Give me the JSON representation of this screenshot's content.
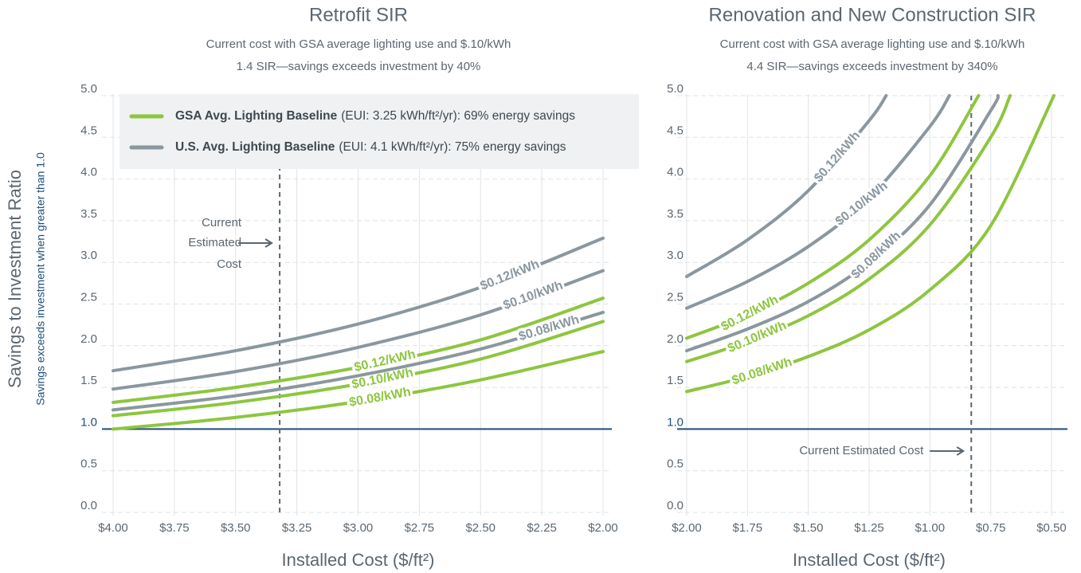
{
  "chart_data": [
    {
      "type": "line",
      "title": "Retrofit SIR",
      "subtitle": [
        "Current cost with GSA average lighting use and $.10/kWh",
        "1.4 SIR—savings exceeds investment by 40%"
      ],
      "xlabel": "Installed Cost ($/ft²)",
      "ylabel": "Savings to Investment Ratio",
      "ylabel_note": "Savings exceeds investment when greater than 1.0",
      "xlim": [
        4.0,
        2.0
      ],
      "xticks": [
        {
          "value": 4.0,
          "label": "$4.00"
        },
        {
          "value": 3.75,
          "label": "$3.75"
        },
        {
          "value": 3.5,
          "label": "$3.50"
        },
        {
          "value": 3.25,
          "label": "$3.25"
        },
        {
          "value": 3.0,
          "label": "$3.00"
        },
        {
          "value": 2.75,
          "label": "$2.75"
        },
        {
          "value": 2.5,
          "label": "$2.50"
        },
        {
          "value": 2.25,
          "label": "$2.25"
        },
        {
          "value": 2.0,
          "label": "$2.00"
        }
      ],
      "ylim": [
        0,
        5
      ],
      "yticks": [
        {
          "value": 0,
          "label": "0.0"
        },
        0.5,
        {
          "value": 1,
          "label": "1.0"
        },
        1.5,
        {
          "value": 2,
          "label": "2.0"
        },
        2.5,
        {
          "value": 3,
          "label": "3.0"
        },
        3.5,
        {
          "value": 4,
          "label": "4.0"
        },
        4.5,
        {
          "value": 5,
          "label": "5.0"
        }
      ],
      "grid": true,
      "reference_line": 1.0,
      "legend": [
        {
          "label": "GSA Avg. Lighting Baseline",
          "detail": "(EUI: 3.25 kWh/ft²/yr): 69% energy savings",
          "color": "#8dc63f"
        },
        {
          "label": "U.S. Avg. Lighting Baseline",
          "detail": "(EUI: 4.1 kWh/ft²/yr): 75% energy savings",
          "color": "#8a979f"
        }
      ],
      "annotation": {
        "x": 3.32,
        "text": [
          "Current",
          "Estimated",
          "Cost"
        ]
      },
      "series": [
        {
          "name": "$0.12/kWh",
          "color": "#8dc63f",
          "x": [
            4.0,
            3.5,
            3.0,
            2.5,
            2.0
          ],
          "values": [
            1.32,
            1.5,
            1.74,
            2.07,
            2.57
          ]
        },
        {
          "name": "$0.10/kWh",
          "color": "#8dc63f",
          "x": [
            4.0,
            3.5,
            3.0,
            2.5,
            2.0
          ],
          "values": [
            1.16,
            1.32,
            1.54,
            1.84,
            2.29
          ]
        },
        {
          "name": "$0.08/kWh",
          "color": "#8dc63f",
          "x": [
            4.0,
            3.5,
            3.0,
            2.5,
            2.0
          ],
          "values": [
            1.0,
            1.14,
            1.33,
            1.59,
            1.93
          ]
        },
        {
          "name": "$0.12/kWh",
          "color": "#8a979f",
          "x": [
            4.0,
            3.5,
            3.0,
            2.5,
            2.0
          ],
          "values": [
            1.7,
            1.94,
            2.26,
            2.7,
            3.29
          ]
        },
        {
          "name": "$0.10/kWh",
          "color": "#8a979f",
          "x": [
            4.0,
            3.5,
            3.0,
            2.5,
            2.0
          ],
          "values": [
            1.48,
            1.69,
            1.98,
            2.37,
            2.9
          ]
        },
        {
          "name": "$0.08/kWh",
          "color": "#8a979f",
          "x": [
            4.0,
            3.5,
            3.0,
            2.5,
            2.0
          ],
          "values": [
            1.23,
            1.4,
            1.64,
            1.96,
            2.4
          ]
        }
      ]
    },
    {
      "type": "line",
      "title": "Renovation and New Construction SIR",
      "subtitle": [
        "Current cost with GSA average lighting use and $.10/kWh",
        "4.4 SIR—savings exceeds investment by 340%"
      ],
      "xlabel": "Installed Cost ($/ft²)",
      "xlim": [
        2.0,
        0.5
      ],
      "xticks": [
        {
          "value": 2.0,
          "label": "$2.00"
        },
        {
          "value": 1.75,
          "label": "$1.75"
        },
        {
          "value": 1.5,
          "label": "$1.50"
        },
        {
          "value": 1.25,
          "label": "$1.25"
        },
        {
          "value": 1.0,
          "label": "$1.00"
        },
        {
          "value": 0.75,
          "label": "$0.75"
        },
        {
          "value": 0.5,
          "label": "$0.50"
        }
      ],
      "ylim": [
        0,
        5
      ],
      "yticks": [
        {
          "value": 0,
          "label": "0.0"
        },
        0.5,
        {
          "value": 1,
          "label": "1.0"
        },
        1.5,
        {
          "value": 2,
          "label": "2.0"
        },
        2.5,
        {
          "value": 3,
          "label": "3.0"
        },
        3.5,
        {
          "value": 4,
          "label": "4.0"
        },
        4.5,
        {
          "value": 5,
          "label": "5.0"
        }
      ],
      "grid": true,
      "reference_line": 1.0,
      "annotation": {
        "x": 0.83,
        "text": [
          "Current Estimated Cost"
        ]
      },
      "series": [
        {
          "name": "$0.12/kWh",
          "color": "#8dc63f",
          "x": [
            2.0,
            1.75,
            1.5,
            1.25,
            1.0,
            0.8
          ],
          "values": [
            2.09,
            2.37,
            2.75,
            3.27,
            4.04,
            5.0
          ]
        },
        {
          "name": "$0.10/kWh",
          "color": "#8dc63f",
          "x": [
            2.0,
            1.75,
            1.5,
            1.25,
            1.0,
            0.75,
            0.67
          ],
          "values": [
            1.81,
            2.05,
            2.36,
            2.8,
            3.45,
            4.5,
            5.0
          ]
        },
        {
          "name": "$0.08/kWh",
          "color": "#8dc63f",
          "x": [
            2.0,
            1.75,
            1.5,
            1.25,
            1.0,
            0.75,
            0.49
          ],
          "values": [
            1.45,
            1.63,
            1.87,
            2.19,
            2.67,
            3.44,
            5.0
          ]
        },
        {
          "name": "$0.12/kWh",
          "color": "#8a979f",
          "x": [
            2.0,
            1.75,
            1.5,
            1.25,
            1.18
          ],
          "values": [
            2.83,
            3.27,
            3.86,
            4.7,
            5.0
          ]
        },
        {
          "name": "$0.10/kWh",
          "color": "#8a979f",
          "x": [
            2.0,
            1.75,
            1.5,
            1.25,
            1.0,
            0.92
          ],
          "values": [
            2.45,
            2.77,
            3.19,
            3.77,
            4.63,
            5.0
          ]
        },
        {
          "name": "$0.08/kWh",
          "color": "#8a979f",
          "x": [
            2.0,
            1.75,
            1.5,
            1.25,
            1.0,
            0.75,
            0.72
          ],
          "values": [
            1.94,
            2.2,
            2.53,
            3.0,
            3.69,
            4.82,
            5.0
          ]
        }
      ]
    }
  ]
}
